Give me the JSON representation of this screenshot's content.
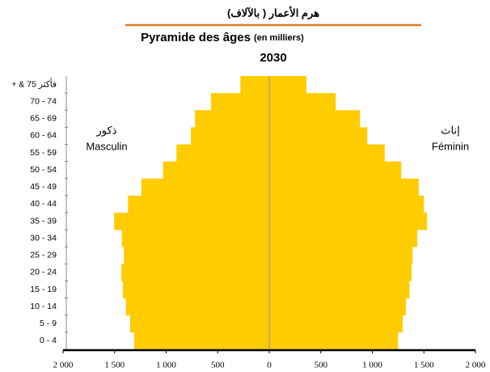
{
  "chart_data": {
    "type": "pyramid",
    "title_ar": "هرم الأعمار ( بالآلاف)",
    "title": "Pyramide des âges",
    "title_unit": "(en milliers)",
    "subtitle": "2030",
    "categories": [
      "0 - 4",
      "5 - 9",
      "10 - 14",
      "15 - 19",
      "20 - 24",
      "25 - 29",
      "30 - 34",
      "35 - 39",
      "40 - 44",
      "45 - 49",
      "50 - 54",
      "55 - 59",
      "60 - 64",
      "65 - 69",
      "70 - 74",
      "+ & 75 فأكثر"
    ],
    "series": [
      {
        "name": "Masculin",
        "name_ar": "ذكور",
        "color": "#ffcc00",
        "values": [
          -1310,
          -1350,
          -1390,
          -1420,
          -1435,
          -1410,
          -1430,
          -1505,
          -1370,
          -1240,
          -1030,
          -900,
          -760,
          -720,
          -565,
          -280
        ]
      },
      {
        "name": "Féminin",
        "name_ar": "إناث",
        "color": "#ffcc00",
        "values": [
          1250,
          1295,
          1325,
          1360,
          1380,
          1390,
          1435,
          1530,
          1500,
          1450,
          1280,
          1120,
          950,
          880,
          645,
          360
        ]
      }
    ],
    "xlim": [
      -2000,
      2000
    ],
    "xticks": [
      {
        "value": -2000,
        "label": "2 000"
      },
      {
        "value": -1500,
        "label": "1 500"
      },
      {
        "value": -1000,
        "label": "1 000"
      },
      {
        "value": -500,
        "label": "500"
      },
      0,
      500,
      {
        "value": 1000,
        "label": "1 000"
      },
      {
        "value": 1500,
        "label": "1 500"
      },
      {
        "value": 2000,
        "label": "2 000"
      }
    ]
  }
}
